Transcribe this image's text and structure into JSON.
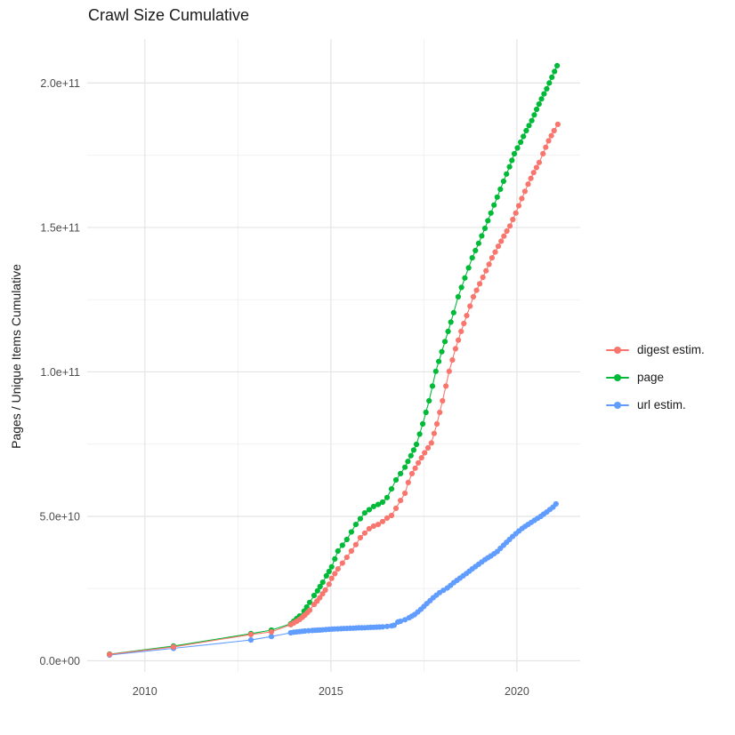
{
  "title": "Crawl Size Cumulative",
  "chart_data": {
    "type": "line",
    "title": "Crawl Size Cumulative",
    "xlabel": "",
    "ylabel": "Pages / Unique Items Cumulative",
    "units": "y values in billions (1e9) of pages / unique items; x values are decimal years",
    "xlim": [
      2008.45,
      2021.7
    ],
    "ylim_billions": [
      -3.85,
      215.2
    ],
    "grid": true,
    "legend_position": "right",
    "x_ticks": [
      {
        "value": 2010,
        "label": "2010"
      },
      {
        "value": 2015,
        "label": "2015"
      },
      {
        "value": 2020,
        "label": "2020"
      }
    ],
    "x_minor": [
      2012.5,
      2017.5
    ],
    "y_ticks": [
      {
        "value": 0,
        "label": "0.0e+00"
      },
      {
        "value": 50,
        "label": "5.0e+10"
      },
      {
        "value": 100,
        "label": "1.0e+11"
      },
      {
        "value": 150,
        "label": "1.5e+11"
      },
      {
        "value": 200,
        "label": "2.0e+11"
      }
    ],
    "y_minor": [
      25,
      75,
      125,
      175
    ],
    "series": [
      {
        "name": "url estim.",
        "color": "#619CFF",
        "points": [
          [
            2009.05,
            2.0
          ],
          [
            2010.77,
            4.3
          ],
          [
            2012.85,
            7.2
          ],
          [
            2013.4,
            8.4
          ],
          [
            2013.92,
            9.7
          ],
          [
            2014.0,
            9.9
          ],
          [
            2014.16,
            10.1
          ],
          [
            2014.3,
            10.3
          ],
          [
            2014.5,
            10.5
          ],
          [
            2014.64,
            10.6
          ],
          [
            2014.78,
            10.7
          ],
          [
            2014.95,
            10.9
          ],
          [
            2015.1,
            11.0
          ],
          [
            2015.27,
            11.1
          ],
          [
            2015.43,
            11.2
          ],
          [
            2015.6,
            11.3
          ],
          [
            2015.75,
            11.4
          ],
          [
            2015.91,
            11.45
          ],
          [
            2016.07,
            11.55
          ],
          [
            2016.23,
            11.65
          ],
          [
            2016.39,
            11.75
          ],
          [
            2016.51,
            11.9
          ],
          [
            2016.63,
            12.1
          ],
          [
            2016.7,
            12.3
          ],
          [
            2016.8,
            13.4
          ],
          [
            2016.87,
            13.7
          ],
          [
            2016.99,
            14.2
          ],
          [
            2017.1,
            14.9
          ],
          [
            2017.25,
            16.0
          ],
          [
            2017.42,
            17.8
          ],
          [
            2017.58,
            19.8
          ],
          [
            2017.75,
            21.8
          ],
          [
            2017.92,
            23.6
          ],
          [
            2018.13,
            25.2
          ],
          [
            2018.3,
            27.0
          ],
          [
            2018.47,
            28.6
          ],
          [
            2018.64,
            30.2
          ],
          [
            2018.8,
            31.8
          ],
          [
            2018.97,
            33.4
          ],
          [
            2019.14,
            35.0
          ],
          [
            2019.3,
            36.3
          ],
          [
            2019.47,
            37.8
          ],
          [
            2019.64,
            40.0
          ],
          [
            2019.8,
            42.0
          ],
          [
            2019.97,
            44.0
          ],
          [
            2020.14,
            45.8
          ],
          [
            2020.3,
            47.2
          ],
          [
            2020.47,
            48.6
          ],
          [
            2020.64,
            50.0
          ],
          [
            2020.8,
            51.5
          ],
          [
            2020.97,
            53.2
          ],
          [
            2021.05,
            54.3
          ]
        ]
      },
      {
        "name": "page",
        "color": "#00BA38",
        "points": [
          [
            2009.05,
            2.3
          ],
          [
            2010.77,
            5.1
          ],
          [
            2012.85,
            9.4
          ],
          [
            2013.4,
            10.6
          ],
          [
            2013.92,
            12.8
          ],
          [
            2014.16,
            15.5
          ],
          [
            2014.28,
            17.2
          ],
          [
            2014.35,
            18.6
          ],
          [
            2014.43,
            20.2
          ],
          [
            2014.55,
            22.6
          ],
          [
            2014.64,
            24.2
          ],
          [
            2014.71,
            25.7
          ],
          [
            2014.78,
            27.2
          ],
          [
            2014.88,
            29.4
          ],
          [
            2014.95,
            30.9
          ],
          [
            2015.02,
            32.5
          ],
          [
            2015.19,
            38.0
          ],
          [
            2015.31,
            40.0
          ],
          [
            2015.43,
            42.0
          ],
          [
            2015.55,
            44.6
          ],
          [
            2015.67,
            47.2
          ],
          [
            2015.79,
            49.2
          ],
          [
            2015.91,
            51.2
          ],
          [
            2016.03,
            52.3
          ],
          [
            2016.15,
            53.4
          ],
          [
            2016.27,
            54.1
          ],
          [
            2016.39,
            54.9
          ],
          [
            2016.51,
            56.5
          ],
          [
            2016.63,
            59.5
          ],
          [
            2016.75,
            62.6
          ],
          [
            2016.87,
            64.8
          ],
          [
            2016.99,
            67.0
          ],
          [
            2017.15,
            71.0
          ],
          [
            2017.3,
            74.9
          ],
          [
            2017.47,
            82.0
          ],
          [
            2017.64,
            90.0
          ],
          [
            2017.82,
            100.2
          ],
          [
            2017.98,
            107.0
          ],
          [
            2018.15,
            114.0
          ],
          [
            2018.3,
            120.5
          ],
          [
            2018.42,
            126.0
          ],
          [
            2018.6,
            132.5
          ],
          [
            2018.8,
            139.5
          ],
          [
            2018.97,
            144.5
          ],
          [
            2019.14,
            149.7
          ],
          [
            2019.3,
            155.0
          ],
          [
            2019.47,
            160.5
          ],
          [
            2019.64,
            166.0
          ],
          [
            2019.8,
            171.0
          ],
          [
            2019.93,
            175.5
          ],
          [
            2020.1,
            179.5
          ],
          [
            2020.25,
            183.5
          ],
          [
            2020.4,
            187.0
          ],
          [
            2020.53,
            190.9
          ],
          [
            2020.66,
            194.5
          ],
          [
            2020.8,
            198.0
          ],
          [
            2020.94,
            202.0
          ],
          [
            2021.08,
            206.0
          ]
        ]
      },
      {
        "name": "digest estim.",
        "color": "#F8766D",
        "points": [
          [
            2009.05,
            2.2
          ],
          [
            2010.77,
            4.8
          ],
          [
            2012.85,
            9.1
          ],
          [
            2013.4,
            10.0
          ],
          [
            2013.92,
            12.5
          ],
          [
            2014.16,
            14.3
          ],
          [
            2014.3,
            15.8
          ],
          [
            2014.43,
            17.5
          ],
          [
            2014.55,
            19.5
          ],
          [
            2014.7,
            21.8
          ],
          [
            2014.85,
            24.5
          ],
          [
            2014.95,
            26.5
          ],
          [
            2015.02,
            28.5
          ],
          [
            2015.19,
            31.8
          ],
          [
            2015.31,
            33.8
          ],
          [
            2015.43,
            35.8
          ],
          [
            2015.55,
            38.0
          ],
          [
            2015.67,
            40.2
          ],
          [
            2015.79,
            42.6
          ],
          [
            2015.91,
            44.2
          ],
          [
            2016.03,
            45.7
          ],
          [
            2016.15,
            46.6
          ],
          [
            2016.27,
            47.2
          ],
          [
            2016.39,
            48.2
          ],
          [
            2016.51,
            49.4
          ],
          [
            2016.63,
            50.3
          ],
          [
            2016.75,
            52.8
          ],
          [
            2016.87,
            55.5
          ],
          [
            2016.99,
            58.0
          ],
          [
            2017.08,
            61.7
          ],
          [
            2017.18,
            64.8
          ],
          [
            2017.35,
            68.5
          ],
          [
            2017.52,
            72.0
          ],
          [
            2017.7,
            75.4
          ],
          [
            2017.85,
            82.0
          ],
          [
            2018.0,
            90.0
          ],
          [
            2018.18,
            100.2
          ],
          [
            2018.35,
            108.0
          ],
          [
            2018.5,
            114.0
          ],
          [
            2018.65,
            119.5
          ],
          [
            2018.83,
            126.0
          ],
          [
            2019.0,
            130.5
          ],
          [
            2019.17,
            135.0
          ],
          [
            2019.33,
            139.5
          ],
          [
            2019.5,
            143.5
          ],
          [
            2019.65,
            147.0
          ],
          [
            2019.81,
            150.5
          ],
          [
            2019.97,
            155.0
          ],
          [
            2020.13,
            160.0
          ],
          [
            2020.3,
            165.0
          ],
          [
            2020.45,
            169.0
          ],
          [
            2020.6,
            172.5
          ],
          [
            2020.7,
            175.5
          ],
          [
            2020.85,
            180.0
          ],
          [
            2021.0,
            183.5
          ],
          [
            2021.1,
            185.7
          ]
        ]
      }
    ]
  },
  "legend": {
    "items": [
      {
        "label": "digest estim.",
        "color": "#F8766D"
      },
      {
        "label": "page",
        "color": "#00BA38"
      },
      {
        "label": "url estim.",
        "color": "#619CFF"
      }
    ]
  },
  "style_colors": {
    "grid_major": "#e4e4e4",
    "grid_minor": "#efefef",
    "tick_label": "#4d4d4d",
    "text": "#1a1a1a",
    "panel_background": "#ffffff"
  }
}
